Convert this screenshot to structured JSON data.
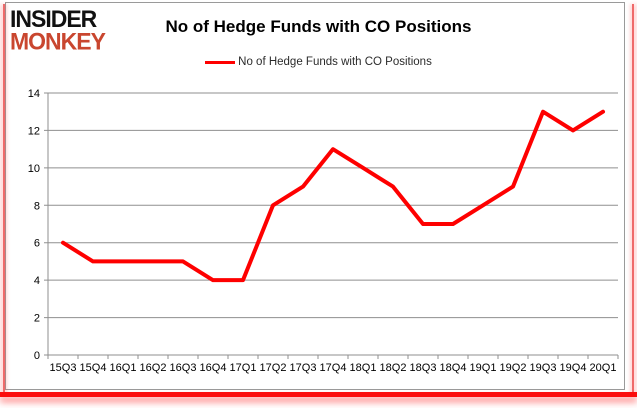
{
  "branding": {
    "line1": "INSIDER",
    "line2": "MONKEY",
    "line2_color": "#c9462f"
  },
  "header": {
    "title": "No of Hedge Funds with CO Positions"
  },
  "legend": {
    "label": "No of Hedge Funds with CO Positions",
    "line_color": "#fe0000"
  },
  "chart_data": {
    "type": "line",
    "title": "No of Hedge Funds with CO Positions",
    "series": [
      {
        "name": "No of Hedge Funds with CO Positions",
        "values": [
          6,
          5,
          5,
          5,
          5,
          4,
          4,
          8,
          9,
          11,
          10,
          9,
          7,
          7,
          8,
          9,
          13,
          12,
          13
        ]
      }
    ],
    "categories": [
      "15Q3",
      "15Q4",
      "16Q1",
      "16Q2",
      "16Q3",
      "16Q4",
      "17Q1",
      "17Q2",
      "17Q3",
      "17Q4",
      "18Q1",
      "18Q2",
      "18Q3",
      "18Q4",
      "19Q1",
      "19Q2",
      "19Q3",
      "19Q4",
      "20Q1"
    ],
    "xlabel": "",
    "ylabel": "",
    "ylim": [
      0,
      14
    ],
    "ytick_step": 2,
    "yticks": [
      0,
      2,
      4,
      6,
      8,
      10,
      12,
      14
    ],
    "grid": true,
    "legend_position": "top",
    "line_color": "#fe0000",
    "gridline_color": "#8f8f8f",
    "axis_color": "#8f8f8f",
    "tick_label_color": "#000000"
  }
}
